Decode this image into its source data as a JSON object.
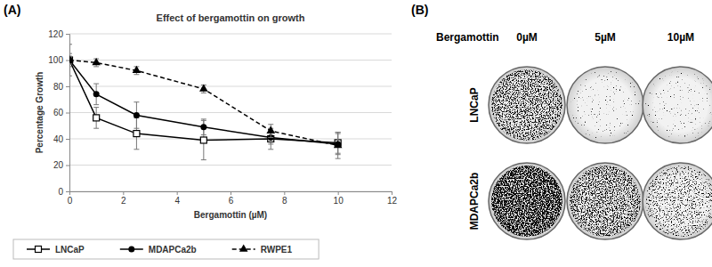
{
  "chart_data": {
    "type": "line",
    "title": "Effect of bergamottin on growth",
    "x_label": "Bergamottin (µM)",
    "y_label": "Percentage Growth",
    "annotations": [
      "(A)"
    ],
    "x": [
      0,
      1,
      2.5,
      5,
      7.5,
      10
    ],
    "series": [
      {
        "name": "LNCaP",
        "color": "#000000",
        "marker": "square",
        "line_style": "solid",
        "values": [
          100,
          56,
          44,
          39,
          40,
          37
        ],
        "errors": [
          5,
          8,
          12,
          15,
          8,
          8
        ]
      },
      {
        "name": "MDAPCa2b",
        "color": "#000000",
        "marker": "circle",
        "line_style": "solid",
        "values": [
          100,
          74,
          58,
          49,
          41,
          36
        ],
        "errors": [
          12,
          8,
          10,
          6,
          5,
          8
        ]
      },
      {
        "name": "RWPE1",
        "color": "#000000",
        "marker": "triangle",
        "line_style": "dashed",
        "values": [
          100,
          98,
          92,
          78,
          46,
          35
        ],
        "errors": [
          3,
          3,
          3,
          3,
          5,
          10
        ]
      }
    ],
    "xlim": [
      0,
      12
    ],
    "xticks": [
      0,
      2,
      4,
      6,
      8,
      10,
      12
    ],
    "ylim": [
      0,
      120
    ],
    "yticks": [
      0,
      20,
      40,
      60,
      80,
      100,
      120
    ],
    "grid": true,
    "legend": "bottom"
  },
  "panel_b": {
    "label": "(B)",
    "treatment": "Bergamottin",
    "doses": [
      "0µM",
      "5µM",
      "10µM"
    ],
    "cell_lines": [
      "LNCaP",
      "MDAPCa2b"
    ]
  }
}
